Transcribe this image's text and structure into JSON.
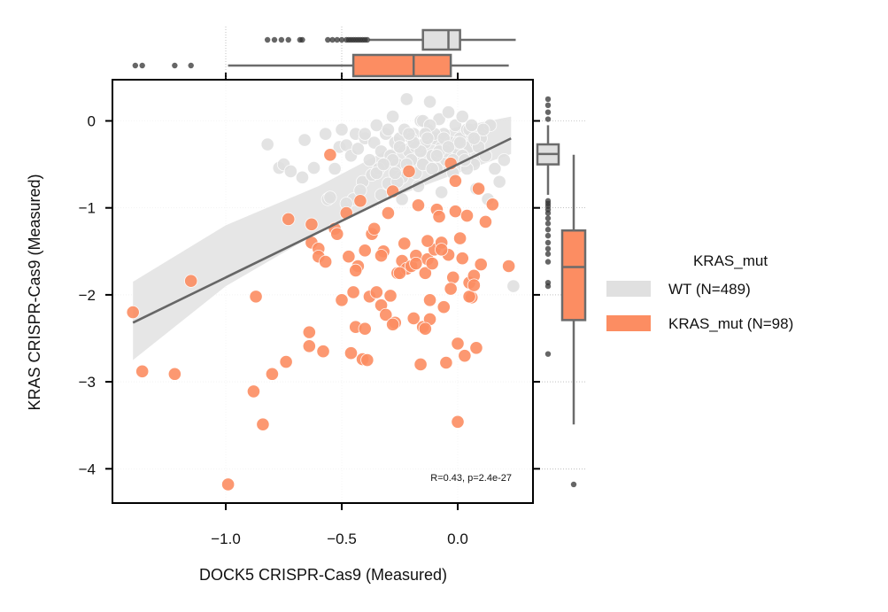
{
  "chart_data": {
    "type": "scatter",
    "xlabel": "DOCK5 CRISPR-Cas9 (Measured)",
    "ylabel": "KRAS CRISPR-Cas9 (Measured)",
    "xlim": [
      -1.45,
      0.32
    ],
    "ylim": [
      -4.4,
      0.45
    ],
    "xticks": [
      -1.0,
      -0.5,
      0.0
    ],
    "xtick_labels": [
      "−1.0",
      "−0.5",
      "0.0"
    ],
    "yticks": [
      0,
      -1,
      -2,
      -3,
      -4
    ],
    "ytick_labels": [
      "0",
      "−1",
      "−2",
      "−3",
      "−4"
    ],
    "annotation": "R=0.43, p=2.4e-27",
    "legend": {
      "title": "KRAS_mut",
      "position": "right",
      "entries": [
        {
          "label": "WT (N=489)",
          "color": "#e0e0e0"
        },
        {
          "label": "KRAS_mut (N=98)",
          "color": "#fc8d62"
        }
      ]
    },
    "regression": {
      "x_range": [
        -1.4,
        0.23
      ],
      "slope": 1.3,
      "intercept": -0.5,
      "color": "#666666",
      "ci_band": {
        "x": [
          -1.4,
          -1.0,
          -0.6,
          -0.3,
          0.0,
          0.23
        ],
        "upper": [
          -1.85,
          -1.2,
          -0.75,
          -0.33,
          -0.07,
          0.05
        ],
        "lower": [
          -2.75,
          -1.9,
          -1.28,
          -0.9,
          -0.6,
          -0.38
        ]
      }
    },
    "series": [
      {
        "name": "WT (N=489)",
        "color": "#e0e0e0",
        "x": [
          -0.82,
          -0.77,
          -0.75,
          -0.72,
          -0.67,
          -0.66,
          -0.62,
          -0.57,
          -0.56,
          -0.53,
          -0.51,
          -0.5,
          -0.48,
          -0.46,
          -0.45,
          -0.44,
          -0.43,
          -0.41,
          -0.4,
          -0.38,
          -0.37,
          -0.36,
          -0.35,
          -0.34,
          -0.33,
          -0.31,
          -0.3,
          -0.29,
          -0.28,
          -0.27,
          -0.26,
          -0.25,
          -0.24,
          -0.23,
          -0.22,
          -0.21,
          -0.2,
          -0.19,
          -0.18,
          -0.17,
          -0.16,
          -0.15,
          -0.14,
          -0.13,
          -0.12,
          -0.11,
          -0.1,
          -0.09,
          -0.08,
          -0.07,
          -0.06,
          -0.05,
          -0.04,
          -0.03,
          -0.02,
          -0.01,
          0.0,
          0.01,
          0.02,
          0.03,
          0.04,
          0.05,
          0.06,
          0.07,
          0.08,
          0.1,
          0.12,
          0.14,
          0.16,
          0.2,
          0.24,
          -0.3,
          -0.25,
          -0.2,
          -0.15,
          -0.1,
          -0.05,
          0.0,
          0.05,
          -0.35,
          -0.28,
          -0.18,
          -0.12,
          -0.06,
          0.02,
          0.09,
          -0.22,
          -0.14,
          -0.08,
          0.04,
          -0.4,
          -0.32,
          -0.26,
          -0.16,
          -0.02,
          0.07,
          0.11,
          -0.19,
          -0.11,
          -0.04,
          0.03,
          -0.27,
          -0.09,
          0.06,
          -0.21,
          -0.13,
          0.01,
          -0.55,
          -0.48,
          -0.42,
          -0.33,
          -0.24,
          -0.17,
          -0.07,
          0.08,
          0.13,
          0.18
        ],
        "y": [
          -0.27,
          -0.54,
          -0.5,
          -0.58,
          -0.65,
          -0.22,
          -0.54,
          -0.15,
          -0.9,
          -0.55,
          -0.3,
          -0.1,
          -0.28,
          -0.4,
          -0.9,
          -0.15,
          -0.32,
          -0.7,
          -0.2,
          -0.45,
          -0.62,
          -0.25,
          -0.05,
          -0.55,
          -0.35,
          -0.15,
          -0.72,
          -0.4,
          0.05,
          -0.25,
          -0.5,
          -0.2,
          -0.65,
          -0.1,
          0.25,
          -0.35,
          -0.45,
          -0.15,
          -0.6,
          -0.3,
          0.0,
          -0.5,
          -0.25,
          -0.1,
          0.22,
          -0.4,
          -0.2,
          -0.55,
          0.02,
          -0.3,
          -0.15,
          -0.45,
          0.1,
          -0.25,
          -0.6,
          -0.05,
          -0.35,
          -0.2,
          0.05,
          -0.4,
          -0.1,
          -0.3,
          -0.15,
          -0.5,
          -0.25,
          -0.2,
          -0.4,
          -0.05,
          -0.55,
          -0.45,
          -1.9,
          -0.1,
          -0.3,
          -0.2,
          0.0,
          -0.15,
          -0.35,
          -0.25,
          -0.1,
          -0.6,
          -0.45,
          -0.3,
          -0.05,
          -0.2,
          -0.4,
          -0.3,
          -0.5,
          -0.15,
          -0.35,
          -0.55,
          -0.15,
          -0.5,
          -0.7,
          -0.35,
          -0.45,
          -0.2,
          -0.1,
          -0.25,
          -0.55,
          -0.3,
          -0.45,
          -0.6,
          -0.4,
          -0.05,
          -0.15,
          -0.2,
          -0.25,
          -0.88,
          -0.95,
          -0.8,
          -0.85,
          -0.9,
          -0.75,
          -0.82,
          -0.78,
          -0.9,
          -0.7
        ]
      },
      {
        "name": "KRAS_mut (N=98)",
        "color": "#fc8d62",
        "x": [
          -1.4,
          -1.36,
          -1.22,
          -1.15,
          -0.99,
          -0.88,
          -0.87,
          -0.84,
          -0.8,
          -0.74,
          -0.73,
          -0.64,
          -0.64,
          -0.63,
          -0.63,
          -0.6,
          -0.6,
          -0.58,
          -0.57,
          -0.55,
          -0.53,
          -0.5,
          -0.48,
          -0.46,
          -0.45,
          -0.44,
          -0.43,
          -0.42,
          -0.41,
          -0.4,
          -0.39,
          -0.38,
          -0.37,
          -0.35,
          -0.33,
          -0.32,
          -0.31,
          -0.3,
          -0.29,
          -0.28,
          -0.27,
          -0.26,
          -0.24,
          -0.22,
          -0.21,
          -0.2,
          -0.19,
          -0.18,
          -0.17,
          -0.16,
          -0.15,
          -0.14,
          -0.13,
          -0.12,
          -0.11,
          -0.1,
          -0.09,
          -0.08,
          -0.07,
          -0.06,
          -0.05,
          -0.04,
          -0.03,
          -0.02,
          -0.01,
          0.0,
          0.01,
          0.02,
          0.03,
          0.04,
          0.05,
          0.06,
          0.07,
          0.08,
          0.09,
          0.1,
          0.12,
          0.15,
          0.22,
          -0.47,
          -0.36,
          -0.25,
          -0.14,
          -0.03,
          0.05,
          -0.44,
          -0.33,
          -0.13,
          -0.01,
          -0.23,
          0.0,
          -0.12,
          -0.4,
          -0.18,
          -0.07,
          -0.52,
          -0.28,
          0.07
        ],
        "y": [
          -2.2,
          -2.88,
          -2.91,
          -1.84,
          -4.18,
          -3.11,
          -2.02,
          -3.49,
          -2.91,
          -2.77,
          -1.13,
          -2.43,
          -2.59,
          -1.19,
          -1.4,
          -1.47,
          -1.56,
          -2.65,
          -1.62,
          -0.39,
          -1.24,
          -2.06,
          -1.06,
          -2.67,
          -1.97,
          -2.37,
          -1.67,
          -0.92,
          -2.74,
          -1.49,
          -2.75,
          -2.02,
          -1.3,
          -1.97,
          -2.12,
          -1.5,
          -2.23,
          -1.06,
          -2.01,
          -0.81,
          -2.32,
          -1.75,
          -1.61,
          -1.7,
          -0.58,
          -1.67,
          -2.27,
          -1.55,
          -0.97,
          -2.8,
          -2.37,
          -1.75,
          -1.59,
          -2.28,
          -1.64,
          -1.48,
          -1.02,
          -1.1,
          -1.4,
          -2.14,
          -2.78,
          -1.54,
          -0.49,
          -1.8,
          -1.04,
          -2.56,
          -1.35,
          -1.58,
          -2.7,
          -1.09,
          -1.86,
          -2.03,
          -1.78,
          -2.61,
          -0.78,
          -1.65,
          -1.16,
          -0.96,
          -1.67,
          -1.56,
          -1.24,
          -1.75,
          -2.39,
          -1.93,
          -2.02,
          -1.72,
          -1.55,
          -1.38,
          -0.69,
          -1.41,
          -3.46,
          -2.06,
          -2.39,
          -1.64,
          -1.48,
          -1.3,
          -2.34,
          -1.89
        ]
      }
    ],
    "marginal_top": [
      {
        "name": "WT (N=489)",
        "color": "#e0e0e0",
        "q1": -0.15,
        "median": -0.04,
        "q3": 0.01,
        "whisker_low": -0.38,
        "whisker_high": 0.25,
        "outliers": [
          -0.82,
          -0.79,
          -0.76,
          -0.73,
          -0.68,
          -0.67,
          -0.56,
          -0.54,
          -0.52,
          -0.5,
          -0.48,
          -0.47,
          -0.46,
          -0.45,
          -0.44,
          -0.43,
          -0.42,
          -0.41,
          -0.4,
          -0.39
        ]
      },
      {
        "name": "KRAS_mut (N=98)",
        "color": "#fc8d62",
        "q1": -0.45,
        "median": -0.19,
        "q3": -0.03,
        "whisker_low": -0.99,
        "whisker_high": 0.22,
        "outliers": [
          -1.39,
          -1.36,
          -1.22,
          -1.15
        ]
      }
    ],
    "marginal_right": [
      {
        "name": "WT (N=489)",
        "color": "#e0e0e0",
        "q1": -0.5,
        "median": -0.38,
        "q3": -0.27,
        "whisker_low": -0.85,
        "whisker_high": -0.05,
        "outliers": [
          0.25,
          0.18,
          0.1,
          0.02,
          -0.92,
          -0.95,
          -0.98,
          -1.02,
          -1.06,
          -1.12,
          -1.18,
          -1.25,
          -1.32,
          -1.4,
          -1.47,
          -1.53,
          -1.62,
          -1.86,
          -1.9,
          -2.68
        ]
      },
      {
        "name": "KRAS_mut (N=98)",
        "color": "#fc8d62",
        "q1": -2.29,
        "median": -1.68,
        "q3": -1.26,
        "whisker_low": -3.49,
        "whisker_high": -0.39,
        "outliers": [
          -4.18
        ]
      }
    ]
  }
}
